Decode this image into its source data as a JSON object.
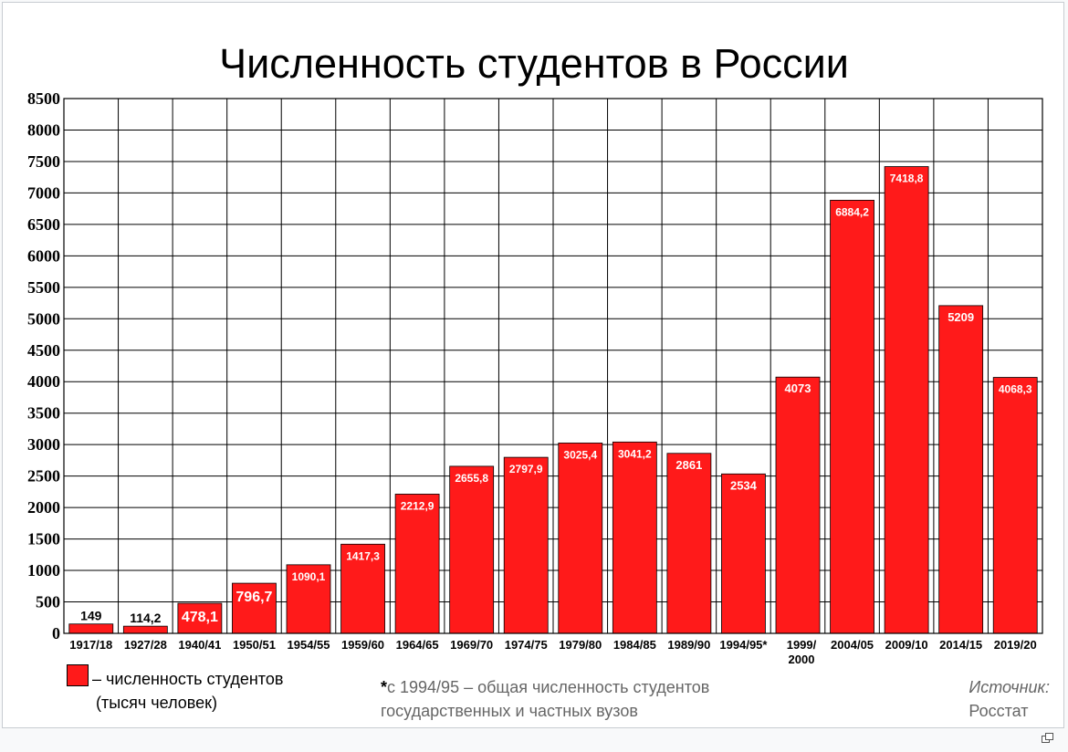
{
  "chart_data": {
    "type": "bar",
    "title": "Численность студентов в России",
    "xlabel": "",
    "ylabel": "",
    "ylim": [
      0,
      8500
    ],
    "y_ticks": [
      0,
      500,
      1000,
      1500,
      2000,
      2500,
      3000,
      3500,
      4000,
      4500,
      5000,
      5500,
      6000,
      6500,
      7000,
      7500,
      8000,
      8500
    ],
    "grid": true,
    "categories": [
      "1917/18",
      "1927/28",
      "1940/41",
      "1950/51",
      "1954/55",
      "1959/60",
      "1964/65",
      "1969/70",
      "1974/75",
      "1979/80",
      "1984/85",
      "1989/90",
      "1994/95*",
      "1999/2000",
      "2004/05",
      "2009/10",
      "2014/15",
      "2019/20"
    ],
    "series": [
      {
        "name": "– численность студентов (тысяч человек)",
        "color": "#ff1a1a",
        "values": [
          149,
          114.2,
          478.1,
          796.7,
          1090.1,
          1417.3,
          2212.9,
          2655.8,
          2797.9,
          3025.4,
          3041.2,
          2861,
          2534,
          4073,
          6884.2,
          7418.8,
          5209,
          4068.3
        ],
        "labels": [
          "149",
          "114,2",
          "478,1",
          "796,7",
          "1090,1",
          "1417,3",
          "2212,9",
          "2655,8",
          "2797,9",
          "3025,4",
          "3041,2",
          "2861",
          "2534",
          "4073",
          "6884,2",
          "7418,8",
          "5209",
          "4068,3"
        ]
      }
    ],
    "legend": {
      "position": "bottom-left",
      "line1": "– численность студентов",
      "line2": "(тысяч человек)"
    },
    "footnote": {
      "star": "*",
      "line1": "с 1994/95 – общая численность студентов",
      "line2": "государственных и частных вузов"
    },
    "source": {
      "label": "Источник:",
      "value": "Росстат"
    }
  }
}
